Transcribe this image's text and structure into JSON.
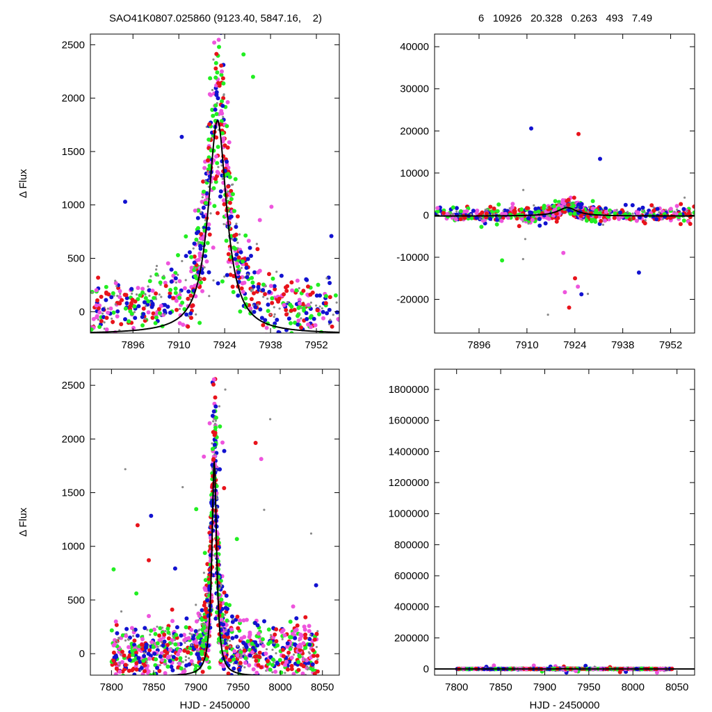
{
  "header": {
    "star_id": "SAO41K0807.025860 (9123.40, 5847.16,    2)",
    "fit_params": "6   10926   20.328   0.263   493   7.49"
  },
  "colors": {
    "red": "#e8131b",
    "blue": "#1212d0",
    "green": "#22ee22",
    "magenta": "#ee55dd",
    "gray": "#8a8a8a",
    "curve": "#000000"
  },
  "chart_data": [
    {
      "id": "top-left",
      "type": "scatter",
      "title": "",
      "xlabel": "",
      "ylabel": "Δ Flux",
      "xlim": [
        7883,
        7959
      ],
      "ylim": [
        -200,
        2600
      ],
      "xticks": [
        7896,
        7910,
        7924,
        7938,
        7952
      ],
      "yticks": [
        0,
        500,
        1000,
        1500,
        2000,
        2500
      ],
      "xtick_labels": [
        "7896",
        "7910",
        "7924",
        "7938",
        "7952"
      ],
      "ytick_labels": [
        "0",
        "500",
        "1000",
        "1500",
        "2000",
        "2500"
      ],
      "series_colors": [
        "gray",
        "red",
        "blue",
        "green",
        "magenta"
      ],
      "fit": {
        "model": "lorentzian",
        "peak_x": 7921.8,
        "amplitude": 2000,
        "baseline": -210,
        "hwhm": 3.4
      }
    },
    {
      "id": "top-right",
      "type": "scatter",
      "title": "",
      "xlabel": "",
      "ylabel": "",
      "xlim": [
        7883,
        7959
      ],
      "ylim": [
        -28000,
        43000
      ],
      "xticks": [
        7896,
        7910,
        7924,
        7938,
        7952
      ],
      "yticks": [
        -20000,
        -10000,
        0,
        10000,
        20000,
        30000,
        40000
      ],
      "xtick_labels": [
        "7896",
        "7910",
        "7924",
        "7938",
        "7952"
      ],
      "ytick_labels": [
        "-20000",
        "-10000",
        "0",
        "10000",
        "20000",
        "30000",
        "40000"
      ],
      "series_colors": [
        "gray",
        "red",
        "blue",
        "green",
        "magenta"
      ],
      "fit": {
        "model": "lorentzian",
        "peak_x": 7921.8,
        "amplitude": 2000,
        "baseline": -210,
        "hwhm": 3.4
      }
    },
    {
      "id": "bottom-left",
      "type": "scatter",
      "title": "",
      "xlabel": "HJD - 2450000",
      "ylabel": "Δ Flux",
      "xlim": [
        7775,
        8070
      ],
      "ylim": [
        -200,
        2650
      ],
      "xticks": [
        7800,
        7850,
        7900,
        7950,
        8000,
        8050
      ],
      "yticks": [
        0,
        500,
        1000,
        1500,
        2000,
        2500
      ],
      "xtick_labels": [
        "7800",
        "7850",
        "7900",
        "7950",
        "8000",
        "8050"
      ],
      "ytick_labels": [
        "0",
        "500",
        "1000",
        "1500",
        "2000",
        "2500"
      ],
      "series_colors": [
        "gray",
        "red",
        "blue",
        "green",
        "magenta"
      ],
      "fit": {
        "model": "lorentzian",
        "peak_x": 7921.8,
        "amplitude": 2000,
        "baseline": -210,
        "hwhm": 3.4
      }
    },
    {
      "id": "bottom-right",
      "type": "scatter",
      "title": "",
      "xlabel": "HJD - 2450000",
      "ylabel": "",
      "xlim": [
        7775,
        8070
      ],
      "ylim": [
        -40000,
        1930000
      ],
      "xticks": [
        7800,
        7850,
        7900,
        7950,
        8000,
        8050
      ],
      "yticks": [
        0,
        200000,
        400000,
        600000,
        800000,
        1000000,
        1200000,
        1400000,
        1600000,
        1800000
      ],
      "xtick_labels": [
        "7800",
        "7850",
        "7900",
        "7950",
        "8000",
        "8050"
      ],
      "ytick_labels": [
        "0",
        "200000",
        "400000",
        "600000",
        "800000",
        "1000000",
        "1200000",
        "1400000",
        "1600000",
        "1800000"
      ],
      "series_colors": [
        "gray",
        "red",
        "blue",
        "green",
        "magenta"
      ],
      "fit": {
        "model": "lorentzian",
        "peak_x": 7921.8,
        "amplitude": 2000,
        "baseline": -210,
        "hwhm": 3.4
      }
    }
  ]
}
